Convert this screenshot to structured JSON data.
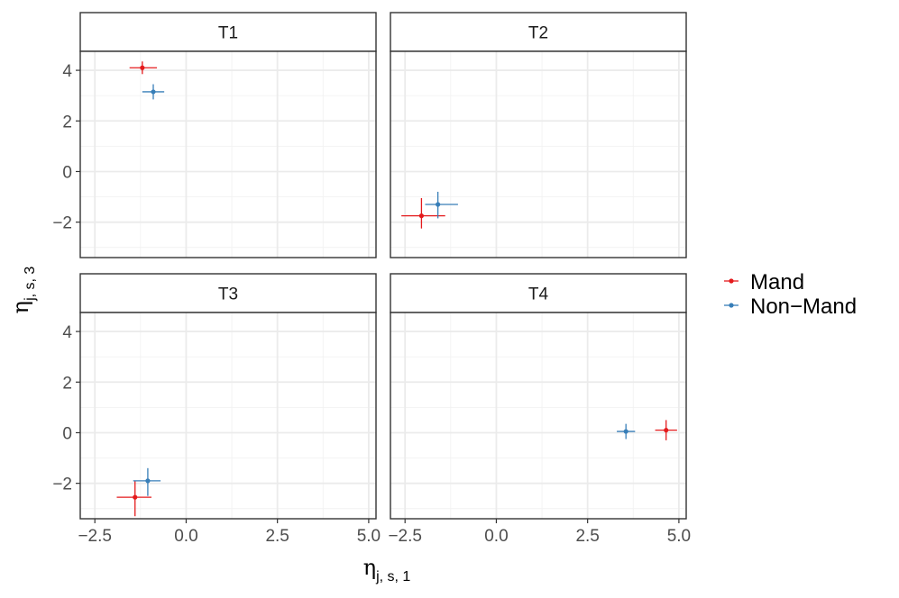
{
  "chart_data": {
    "type": "scatter",
    "subtype": "faceted point estimates with horizontal and vertical error bars",
    "xlabel": {
      "symbol": "η",
      "subscript": "j, s, 1"
    },
    "ylabel": {
      "symbol": "η",
      "subscript": "j, s, 3"
    },
    "xlim": [
      -2.9,
      5.2
    ],
    "ylim": [
      -3.4,
      4.75
    ],
    "x_ticks": [
      -2.5,
      0.0,
      2.5,
      5.0
    ],
    "x_tick_labels": [
      "−2.5",
      "0.0",
      "2.5",
      "5.0"
    ],
    "y_ticks": [
      -2,
      0,
      2,
      4
    ],
    "y_tick_labels": [
      "−2",
      "0",
      "2",
      "4"
    ],
    "grid": true,
    "legend_position": "right",
    "series": [
      {
        "name": "Mand",
        "color": "#e41a1c"
      },
      {
        "name": "Non−Mand",
        "color": "#377eb8"
      }
    ],
    "facets": [
      {
        "label": "T1",
        "points": [
          {
            "series": "Mand",
            "x": -1.2,
            "y": 4.1,
            "xmin": -1.55,
            "xmax": -0.8,
            "ymin": 3.85,
            "ymax": 4.35
          },
          {
            "series": "Non−Mand",
            "x": -0.9,
            "y": 3.15,
            "xmin": -1.2,
            "xmax": -0.6,
            "ymin": 2.85,
            "ymax": 3.45
          }
        ]
      },
      {
        "label": "T2",
        "points": [
          {
            "series": "Mand",
            "x": -2.05,
            "y": -1.75,
            "xmin": -2.6,
            "xmax": -1.4,
            "ymin": -2.25,
            "ymax": -1.05
          },
          {
            "series": "Non−Mand",
            "x": -1.6,
            "y": -1.3,
            "xmin": -1.95,
            "xmax": -1.05,
            "ymin": -1.85,
            "ymax": -0.8
          }
        ]
      },
      {
        "label": "T3",
        "points": [
          {
            "series": "Mand",
            "x": -1.4,
            "y": -2.55,
            "xmin": -1.9,
            "xmax": -0.95,
            "ymin": -3.3,
            "ymax": -1.9
          },
          {
            "series": "Non−Mand",
            "x": -1.05,
            "y": -1.9,
            "xmin": -1.45,
            "xmax": -0.7,
            "ymin": -2.5,
            "ymax": -1.4
          }
        ]
      },
      {
        "label": "T4",
        "points": [
          {
            "series": "Mand",
            "x": 4.65,
            "y": 0.1,
            "xmin": 4.35,
            "xmax": 4.95,
            "ymin": -0.3,
            "ymax": 0.5
          },
          {
            "series": "Non−Mand",
            "x": 3.55,
            "y": 0.05,
            "xmin": 3.3,
            "xmax": 3.8,
            "ymin": -0.25,
            "ymax": 0.35
          }
        ]
      }
    ]
  }
}
